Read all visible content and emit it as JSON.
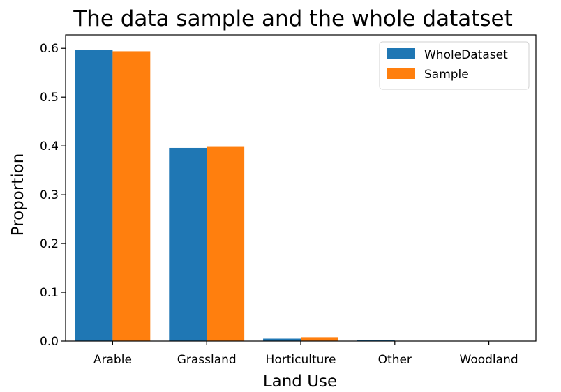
{
  "chart_data": {
    "type": "bar",
    "title": "The data sample and the whole datatset",
    "xlabel": "Land Use",
    "ylabel": "Proportion",
    "categories": [
      "Arable",
      "Grassland",
      "Horticulture",
      "Other",
      "Woodland"
    ],
    "series": [
      {
        "name": "WholeDataset",
        "color": "#1f77b4",
        "values": [
          0.597,
          0.396,
          0.005,
          0.002,
          0.0
        ]
      },
      {
        "name": "Sample",
        "color": "#ff7f0e",
        "values": [
          0.594,
          0.398,
          0.008,
          0.0,
          0.0
        ]
      }
    ],
    "ylim": [
      0,
      0.6275
    ],
    "yticks": [
      0.0,
      0.1,
      0.2,
      0.3,
      0.4,
      0.5,
      0.6
    ],
    "ytick_labels": [
      "0.0",
      "0.1",
      "0.2",
      "0.3",
      "0.4",
      "0.5",
      "0.6"
    ],
    "grid": false,
    "legend_position": "top-right"
  }
}
